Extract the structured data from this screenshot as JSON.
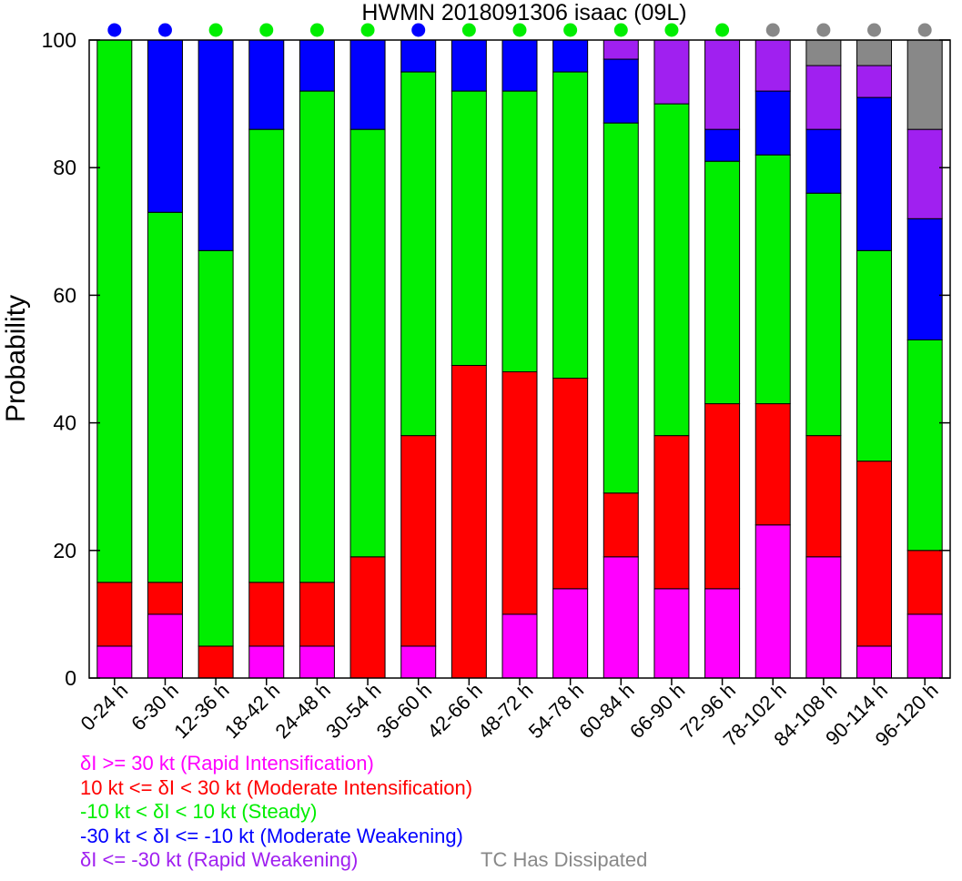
{
  "chart_data": {
    "type": "bar",
    "title": "HWMN 2018091306 isaac (09L)",
    "ylabel": "Probability",
    "xlabel": "",
    "ylim": [
      0,
      100
    ],
    "yticks": [
      "0",
      "20",
      "40",
      "60",
      "80",
      "100"
    ],
    "categories": [
      "0-24 h",
      "6-30 h",
      "12-36 h",
      "18-42 h",
      "24-48 h",
      "30-54 h",
      "36-60 h",
      "42-66 h",
      "48-72 h",
      "54-78 h",
      "60-84 h",
      "66-90 h",
      "72-96 h",
      "78-102 h",
      "84-108 h",
      "90-114 h",
      "96-120 h"
    ],
    "stacked": true,
    "series": [
      {
        "key": "ri",
        "color": "#ff00ff",
        "values": [
          5,
          10,
          0,
          5,
          5,
          0,
          5,
          0,
          10,
          14,
          19,
          14,
          14,
          24,
          19,
          5,
          10
        ]
      },
      {
        "key": "mi",
        "color": "#ff0000",
        "values": [
          10,
          5,
          5,
          10,
          10,
          19,
          33,
          49,
          38,
          33,
          10,
          24,
          29,
          19,
          19,
          29,
          10
        ]
      },
      {
        "key": "st",
        "color": "#00ee00",
        "values": [
          85,
          58,
          62,
          71,
          77,
          67,
          57,
          43,
          44,
          48,
          58,
          52,
          38,
          39,
          38,
          33,
          33
        ]
      },
      {
        "key": "mw",
        "color": "#0000ff",
        "values": [
          0,
          27,
          33,
          14,
          8,
          14,
          5,
          8,
          8,
          5,
          10,
          0,
          5,
          10,
          10,
          24,
          19
        ]
      },
      {
        "key": "rw",
        "color": "#a020f0",
        "values": [
          0,
          0,
          0,
          0,
          0,
          0,
          0,
          0,
          0,
          0,
          3,
          10,
          14,
          8,
          10,
          5,
          14
        ]
      },
      {
        "key": "td",
        "color": "#888888",
        "values": [
          0,
          0,
          0,
          0,
          0,
          0,
          0,
          0,
          0,
          0,
          0,
          0,
          0,
          0,
          4,
          4,
          14
        ]
      }
    ],
    "top_dot_colors": [
      "#0000ff",
      "#0000ff",
      "#00ee00",
      "#00ee00",
      "#00ee00",
      "#00ee00",
      "#0000ff",
      "#00ee00",
      "#00ee00",
      "#00ee00",
      "#00ee00",
      "#00ee00",
      "#00ee00",
      "#888888",
      "#888888",
      "#888888",
      "#888888"
    ],
    "legend": [
      {
        "text": "δI >= 30 kt (Rapid Intensification)",
        "color": "#ff00ff"
      },
      {
        "text": "10 kt <= δI < 30 kt (Moderate Intensification)",
        "color": "#ff0000"
      },
      {
        "text": "-10 kt < δI < 10 kt (Steady)",
        "color": "#00ee00"
      },
      {
        "text": "-30 kt < δI <= -10 kt (Moderate Weakening)",
        "color": "#0000ff"
      },
      {
        "text": "δI <= -30 kt (Rapid Weakening)",
        "color": "#a020f0"
      },
      {
        "text": "TC Has Dissipated",
        "color": "#888888"
      }
    ]
  }
}
